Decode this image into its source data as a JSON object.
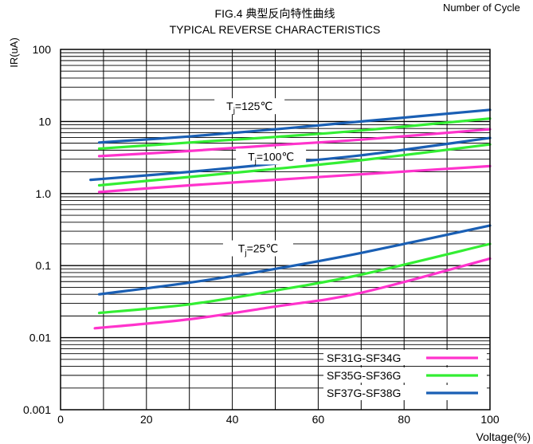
{
  "top_fragment": "Number of Cycle",
  "chart_data": {
    "type": "line",
    "title": "FIG.4 典型反向特性曲线",
    "subtitle": "TYPICAL REVERSE CHARACTERISTICS",
    "xlabel": "Voltage(%)",
    "ylabel": "IR(uA)",
    "xlim": [
      0,
      100
    ],
    "ylim": [
      0.001,
      100
    ],
    "yscale": "log",
    "grid": true,
    "x_ticks": [
      "0",
      "20",
      "40",
      "60",
      "80",
      "100"
    ],
    "y_ticks": [
      "100",
      "10",
      "1.0",
      "0.1",
      "0.01",
      "0.001"
    ],
    "legend_position": "bottom-right",
    "annotations": [
      {
        "label": "T",
        "sub": "j",
        "rest": "=125℃",
        "x": 44,
        "y": 15.5
      },
      {
        "label": "T",
        "sub": "j",
        "rest": "=100℃",
        "x": 49,
        "y": 3.1
      },
      {
        "label": "T",
        "sub": "j",
        "rest": "=25℃",
        "x": 46,
        "y": 0.165
      }
    ],
    "series": [
      {
        "name": "SF31G-SF34G",
        "color": "#ff33cc",
        "group": "125",
        "x": [
          9,
          30,
          50,
          70,
          100
        ],
        "y": [
          3.3,
          3.9,
          4.7,
          5.6,
          7.8
        ]
      },
      {
        "name": "SF35G-SF36G",
        "color": "#33ee33",
        "group": "125",
        "x": [
          9,
          30,
          50,
          70,
          100
        ],
        "y": [
          4.2,
          5.1,
          6.1,
          7.5,
          11.0
        ]
      },
      {
        "name": "SF37G-SF38G",
        "color": "#1a5fb4",
        "group": "125",
        "x": [
          9,
          30,
          50,
          70,
          100
        ],
        "y": [
          5.1,
          6.2,
          7.8,
          10.0,
          14.5
        ]
      },
      {
        "name": "SF31G-SF34G",
        "color": "#ff33cc",
        "group": "100",
        "x": [
          9,
          30,
          50,
          70,
          100
        ],
        "y": [
          1.05,
          1.3,
          1.55,
          1.85,
          2.4
        ]
      },
      {
        "name": "SF35G-SF36G",
        "color": "#33ee33",
        "group": "100",
        "x": [
          9,
          30,
          50,
          70,
          100
        ],
        "y": [
          1.3,
          1.7,
          2.2,
          2.9,
          4.8
        ]
      },
      {
        "name": "SF37G-SF38G",
        "color": "#1a5fb4",
        "group": "100",
        "x": [
          7,
          30,
          50,
          70,
          100
        ],
        "y": [
          1.55,
          2.0,
          2.6,
          3.4,
          5.9
        ]
      },
      {
        "name": "SF31G-SF34G",
        "color": "#ff33cc",
        "group": "25",
        "x": [
          8,
          30,
          50,
          70,
          100
        ],
        "y": [
          0.0135,
          0.018,
          0.027,
          0.042,
          0.125
        ]
      },
      {
        "name": "SF35G-SF36G",
        "color": "#33ee33",
        "group": "25",
        "x": [
          9,
          30,
          50,
          70,
          100
        ],
        "y": [
          0.022,
          0.029,
          0.045,
          0.075,
          0.2
        ]
      },
      {
        "name": "SF37G-SF38G",
        "color": "#1a5fb4",
        "group": "25",
        "x": [
          9,
          30,
          50,
          70,
          100
        ],
        "y": [
          0.04,
          0.058,
          0.09,
          0.15,
          0.36
        ]
      }
    ],
    "legend": [
      {
        "label": "SF31G-SF34G",
        "color": "#ff33cc"
      },
      {
        "label": "SF35G-SF36G",
        "color": "#33ee33"
      },
      {
        "label": "SF37G-SF38G",
        "color": "#1a5fb4"
      }
    ]
  }
}
